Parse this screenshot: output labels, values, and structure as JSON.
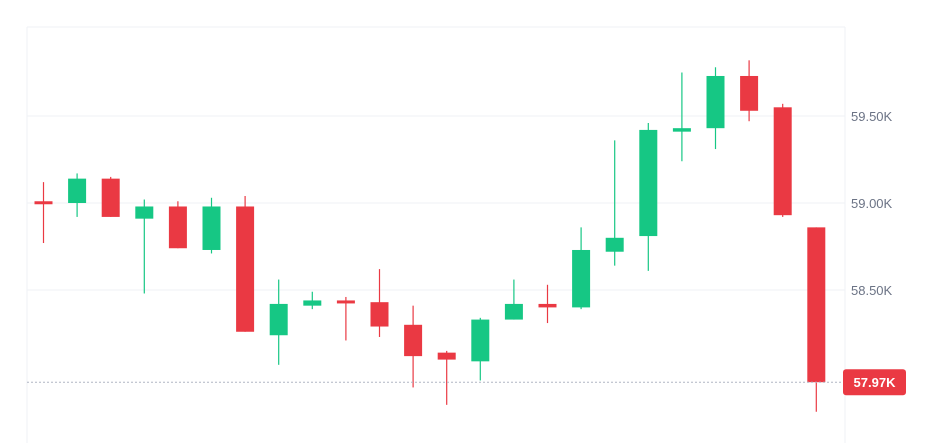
{
  "chart_data": {
    "type": "candlestick",
    "y_axis": {
      "ticks": [
        {
          "value": 59500,
          "label": "59.50K"
        },
        {
          "value": 59000,
          "label": "59.00K"
        },
        {
          "value": 58500,
          "label": "58.50K"
        }
      ],
      "position": "right",
      "grid": true
    },
    "current_price": {
      "value": 57970,
      "label": "57.97K"
    },
    "candles": [
      {
        "open": 59010,
        "high": 59120,
        "low": 58770,
        "close": 59000
      },
      {
        "open": 59000,
        "high": 59170,
        "low": 58920,
        "close": 59140
      },
      {
        "open": 59140,
        "high": 59150,
        "low": 58920,
        "close": 58920
      },
      {
        "open": 58910,
        "high": 59020,
        "low": 58480,
        "close": 58980
      },
      {
        "open": 58980,
        "high": 59010,
        "low": 58740,
        "close": 58740
      },
      {
        "open": 58730,
        "high": 59030,
        "low": 58710,
        "close": 58980
      },
      {
        "open": 58980,
        "high": 59040,
        "low": 58260,
        "close": 58260
      },
      {
        "open": 58240,
        "high": 58560,
        "low": 58070,
        "close": 58420
      },
      {
        "open": 58410,
        "high": 58490,
        "low": 58390,
        "close": 58440
      },
      {
        "open": 58440,
        "high": 58460,
        "low": 58210,
        "close": 58430
      },
      {
        "open": 58430,
        "high": 58620,
        "low": 58230,
        "close": 58290
      },
      {
        "open": 58300,
        "high": 58410,
        "low": 57940,
        "close": 58120
      },
      {
        "open": 58140,
        "high": 58150,
        "low": 57840,
        "close": 58100
      },
      {
        "open": 58090,
        "high": 58340,
        "low": 57980,
        "close": 58330
      },
      {
        "open": 58330,
        "high": 58560,
        "low": 58330,
        "close": 58420
      },
      {
        "open": 58420,
        "high": 58530,
        "low": 58310,
        "close": 58400
      },
      {
        "open": 58400,
        "high": 58860,
        "low": 58390,
        "close": 58730
      },
      {
        "open": 58720,
        "high": 59360,
        "low": 58640,
        "close": 58800
      },
      {
        "open": 58810,
        "high": 59460,
        "low": 58610,
        "close": 59420
      },
      {
        "open": 59410,
        "high": 59750,
        "low": 59240,
        "close": 59430
      },
      {
        "open": 59430,
        "high": 59780,
        "low": 59310,
        "close": 59730
      },
      {
        "open": 59730,
        "high": 59820,
        "low": 59470,
        "close": 59530
      },
      {
        "open": 59550,
        "high": 59570,
        "low": 58920,
        "close": 58930
      },
      {
        "open": 58860,
        "high": 58860,
        "low": 57800,
        "close": 57970
      }
    ],
    "colors": {
      "up": "#16c784",
      "down": "#ea3943",
      "grid": "#eff2f5",
      "axis_text": "#6b7385",
      "price_line": "#b0b6c3"
    }
  }
}
